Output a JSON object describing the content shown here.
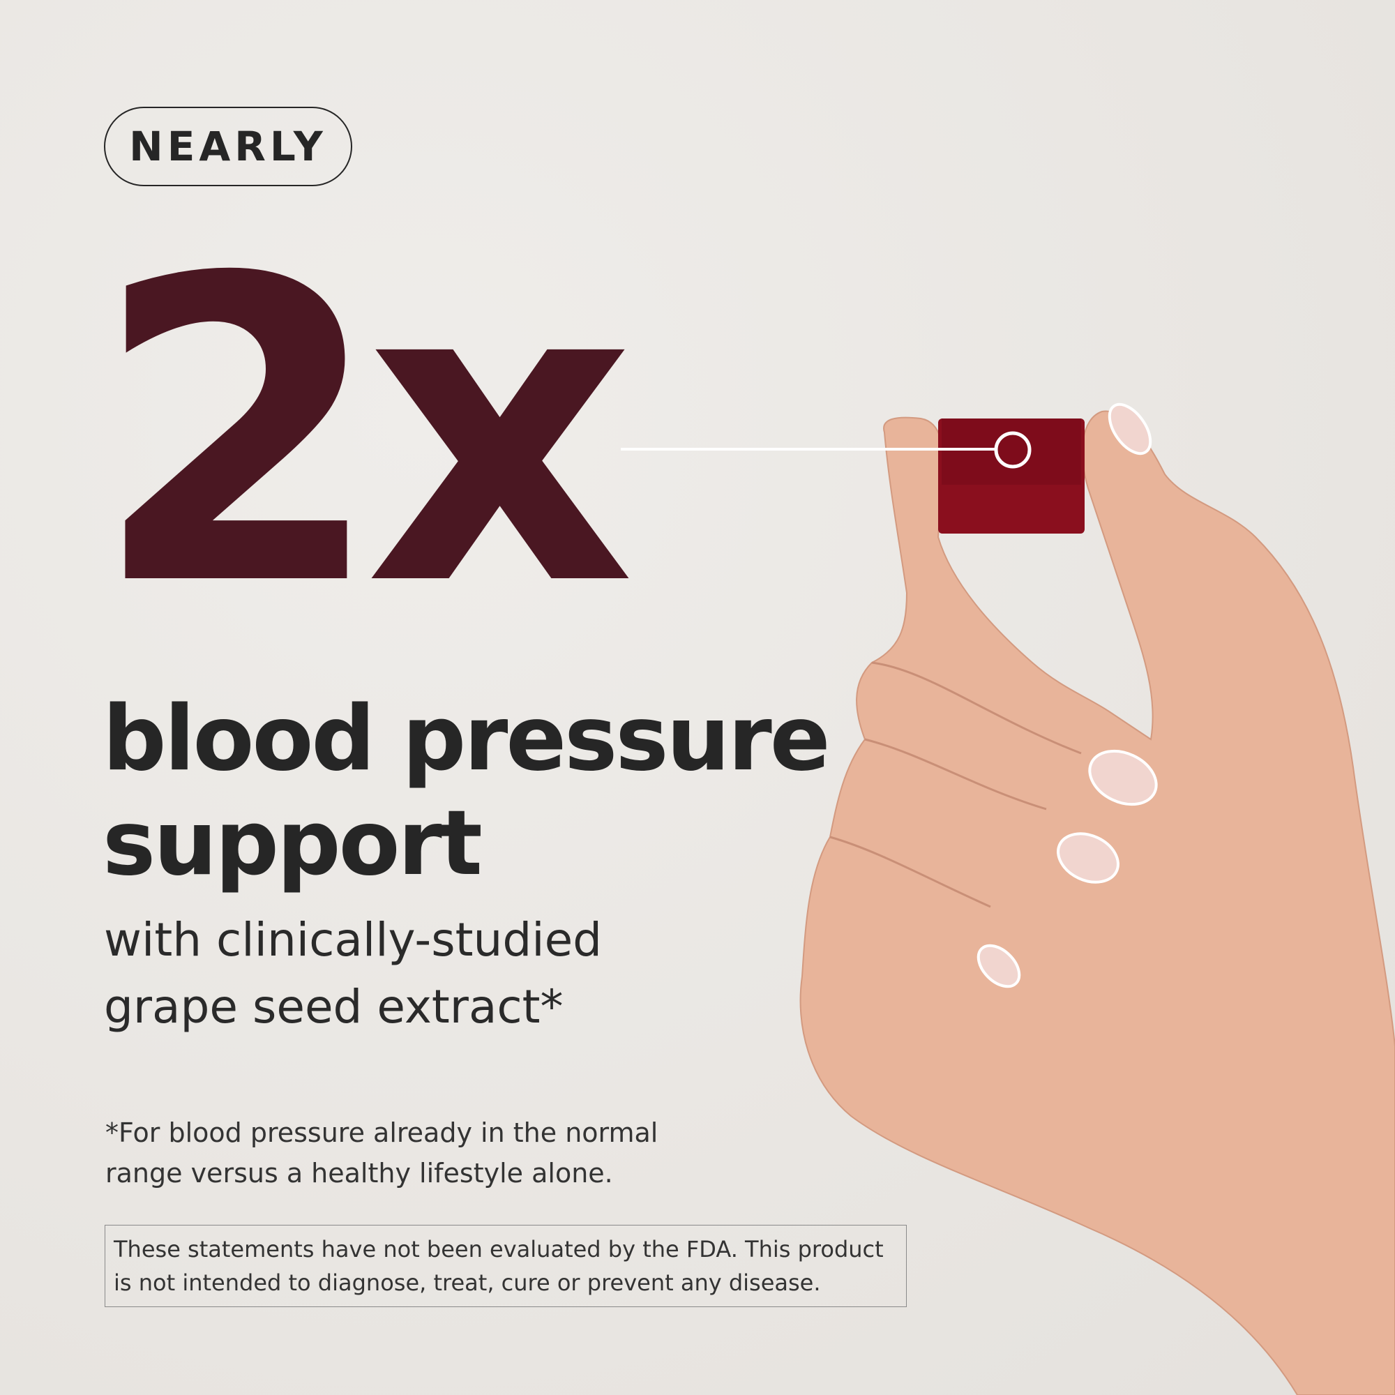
{
  "badge": "NEARLY",
  "headline_number": "2x",
  "headline": [
    "blood pressure",
    "support"
  ],
  "subheadline": [
    "with clinically-studied",
    "grape seed extract*"
  ],
  "footnote": [
    "*For blood pressure already in the normal",
    "range versus a healthy lifestyle alone."
  ],
  "disclaimer": [
    "These statements have not been evaluated by the FDA. This product",
    "is not intended to diagnose, treat, cure or prevent any disease."
  ],
  "colors": {
    "accent": "#4a1722",
    "gummy": "#8a0f1e",
    "text": "#262626",
    "background": "#ebe8e4"
  }
}
